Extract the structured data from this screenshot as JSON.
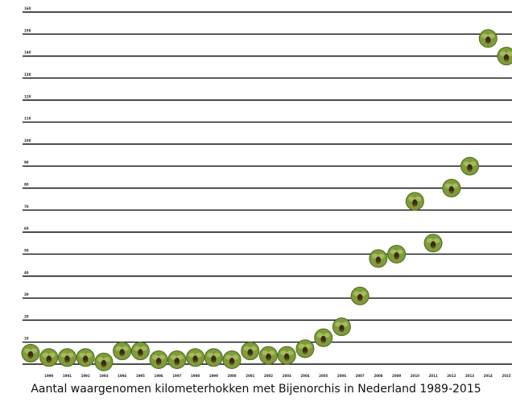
{
  "chart_data": {
    "type": "scatter",
    "caption": "Aantal waargenomen kilometerhokken met Bijenorchis in Nederland 1989-2015",
    "marker": "bee-orchid-flower-icon",
    "colors": {
      "marker_fill": "#7f9b3a",
      "marker_edge": "#4d6a1e",
      "marker_center": "#3b2a14",
      "gridline": "#111111"
    },
    "ylim": [
      0,
      160
    ],
    "y_ticks": [
      10,
      20,
      30,
      40,
      50,
      60,
      70,
      80,
      90,
      100,
      110,
      120,
      130,
      140,
      150,
      160
    ],
    "x_tick_labels": [
      "1990",
      "1991",
      "1992",
      "1993",
      "1994",
      "1995",
      "1996",
      "1997",
      "1998",
      "1999",
      "2000",
      "2001",
      "2002",
      "2003",
      "2004",
      "2005",
      "2006",
      "2007",
      "2008",
      "2009",
      "2010",
      "2011",
      "2012",
      "2013",
      "2014",
      "2015"
    ],
    "grid": true,
    "points": [
      {
        "x": 1989,
        "y": 5
      },
      {
        "x": 1990,
        "y": 3
      },
      {
        "x": 1991,
        "y": 3
      },
      {
        "x": 1992,
        "y": 3
      },
      {
        "x": 1993,
        "y": 1
      },
      {
        "x": 1994,
        "y": 6
      },
      {
        "x": 1995,
        "y": 6
      },
      {
        "x": 1996,
        "y": 2
      },
      {
        "x": 1997,
        "y": 2
      },
      {
        "x": 1998,
        "y": 3
      },
      {
        "x": 1999,
        "y": 3
      },
      {
        "x": 2000,
        "y": 2
      },
      {
        "x": 2001,
        "y": 6
      },
      {
        "x": 2002,
        "y": 4
      },
      {
        "x": 2003,
        "y": 4
      },
      {
        "x": 2004,
        "y": 7
      },
      {
        "x": 2005,
        "y": 12
      },
      {
        "x": 2006,
        "y": 17
      },
      {
        "x": 2007,
        "y": 31
      },
      {
        "x": 2008,
        "y": 48
      },
      {
        "x": 2009,
        "y": 50
      },
      {
        "x": 2010,
        "y": 74
      },
      {
        "x": 2011,
        "y": 55
      },
      {
        "x": 2012,
        "y": 80
      },
      {
        "x": 2013,
        "y": 90
      },
      {
        "x": 2014,
        "y": 148
      },
      {
        "x": 2015,
        "y": 140
      }
    ]
  }
}
